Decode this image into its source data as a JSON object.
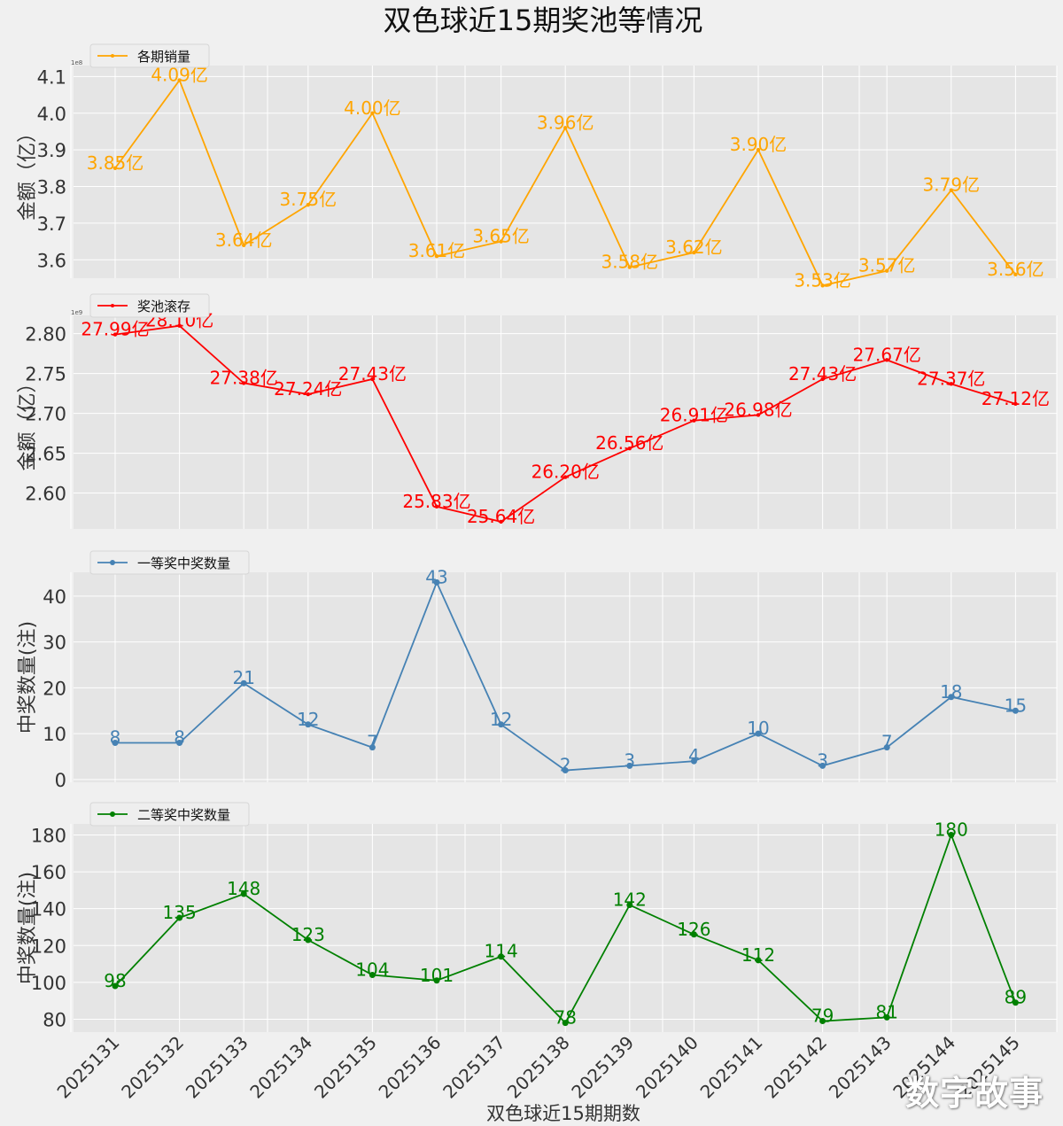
{
  "figure_title": "双色球近15期奖池等情况",
  "xlabel": "双色球近15期期数",
  "watermark": "数字故事",
  "colors": {
    "background": "#f0f0f0",
    "axes_bg": "#e5e5e5",
    "grid": "#ffffff"
  },
  "chart_data": [
    {
      "type": "line",
      "legend": "各期销量",
      "ylabel": "金额（亿）",
      "offset_text": "1e8",
      "color": "#ffa500",
      "marker": "dot-small",
      "ylim": [
        355000000,
        413000000
      ],
      "yticks": [
        360000000,
        370000000,
        380000000,
        390000000,
        400000000,
        410000000
      ],
      "ytick_labels": [
        "3.6",
        "3.7",
        "3.8",
        "3.9",
        "4.0",
        "4.1"
      ],
      "categories": [
        "2025131",
        "2025132",
        "2025133",
        "2025134",
        "2025135",
        "2025136",
        "2025137",
        "2025138",
        "2025139",
        "2025140",
        "2025141",
        "2025142",
        "2025143",
        "2025144",
        "2025145"
      ],
      "values": [
        385000000,
        409000000,
        364000000,
        375000000,
        400000000,
        361000000,
        365000000,
        396000000,
        358000000,
        362000000,
        390000000,
        353000000,
        357000000,
        379000000,
        356000000
      ],
      "labels": [
        "3.85亿",
        "4.09亿",
        "3.64亿",
        "3.75亿",
        "4.00亿",
        "3.61亿",
        "3.65亿",
        "3.96亿",
        "3.58亿",
        "3.62亿",
        "3.90亿",
        "3.53亿",
        "3.57亿",
        "3.79亿",
        "3.56亿"
      ]
    },
    {
      "type": "line",
      "legend": "奖池滚存",
      "ylabel": "金额（亿）",
      "offset_text": "1e9",
      "color": "#ff0000",
      "marker": "dot-small",
      "ylim": [
        2555000000,
        2823000000
      ],
      "yticks": [
        2600000000,
        2650000000,
        2700000000,
        2750000000,
        2800000000
      ],
      "ytick_labels": [
        "2.60",
        "2.65",
        "2.70",
        "2.75",
        "2.80"
      ],
      "categories": [
        "2025131",
        "2025132",
        "2025133",
        "2025134",
        "2025135",
        "2025136",
        "2025137",
        "2025138",
        "2025139",
        "2025140",
        "2025141",
        "2025142",
        "2025143",
        "2025144",
        "2025145"
      ],
      "values": [
        2799000000,
        2810000000,
        2738000000,
        2724000000,
        2743000000,
        2583000000,
        2564000000,
        2620000000,
        2656000000,
        2691000000,
        2698000000,
        2743000000,
        2767000000,
        2737000000,
        2712000000
      ],
      "labels": [
        "27.99亿",
        "28.10亿",
        "27.38亿",
        "27.24亿",
        "27.43亿",
        "25.83亿",
        "25.64亿",
        "26.20亿",
        "26.56亿",
        "26.91亿",
        "26.98亿",
        "27.43亿",
        "27.67亿",
        "27.37亿",
        "27.12亿"
      ]
    },
    {
      "type": "line",
      "legend": "一等奖中奖数量",
      "ylabel": "中奖数量(注)",
      "color": "#4682b4",
      "marker": "dot",
      "ylim": [
        -0.6,
        45.2
      ],
      "yticks": [
        0,
        10,
        20,
        30,
        40
      ],
      "ytick_labels": [
        "0",
        "10",
        "20",
        "30",
        "40"
      ],
      "categories": [
        "2025131",
        "2025132",
        "2025133",
        "2025134",
        "2025135",
        "2025136",
        "2025137",
        "2025138",
        "2025139",
        "2025140",
        "2025141",
        "2025142",
        "2025143",
        "2025144",
        "2025145"
      ],
      "values": [
        8,
        8,
        21,
        12,
        7,
        43,
        12,
        2,
        3,
        4,
        10,
        3,
        7,
        18,
        15
      ],
      "labels": [
        "8",
        "8",
        "21",
        "12",
        "7",
        "43",
        "12",
        "2",
        "3",
        "4",
        "10",
        "3",
        "7",
        "18",
        "15"
      ]
    },
    {
      "type": "line",
      "legend": "二等奖中奖数量",
      "ylabel": "中奖数量(注)",
      "color": "#008000",
      "marker": "dot",
      "ylim": [
        73,
        186
      ],
      "yticks": [
        80,
        100,
        120,
        140,
        160,
        180
      ],
      "ytick_labels": [
        "80",
        "100",
        "120",
        "140",
        "160",
        "180"
      ],
      "categories": [
        "2025131",
        "2025132",
        "2025133",
        "2025134",
        "2025135",
        "2025136",
        "2025137",
        "2025138",
        "2025139",
        "2025140",
        "2025141",
        "2025142",
        "2025143",
        "2025144",
        "2025145"
      ],
      "values": [
        98,
        135,
        148,
        123,
        104,
        101,
        114,
        78,
        142,
        126,
        112,
        79,
        81,
        180,
        89
      ],
      "labels": [
        "98",
        "135",
        "148",
        "123",
        "104",
        "101",
        "114",
        "78",
        "142",
        "126",
        "112",
        "79",
        "81",
        "180",
        "89"
      ]
    }
  ]
}
